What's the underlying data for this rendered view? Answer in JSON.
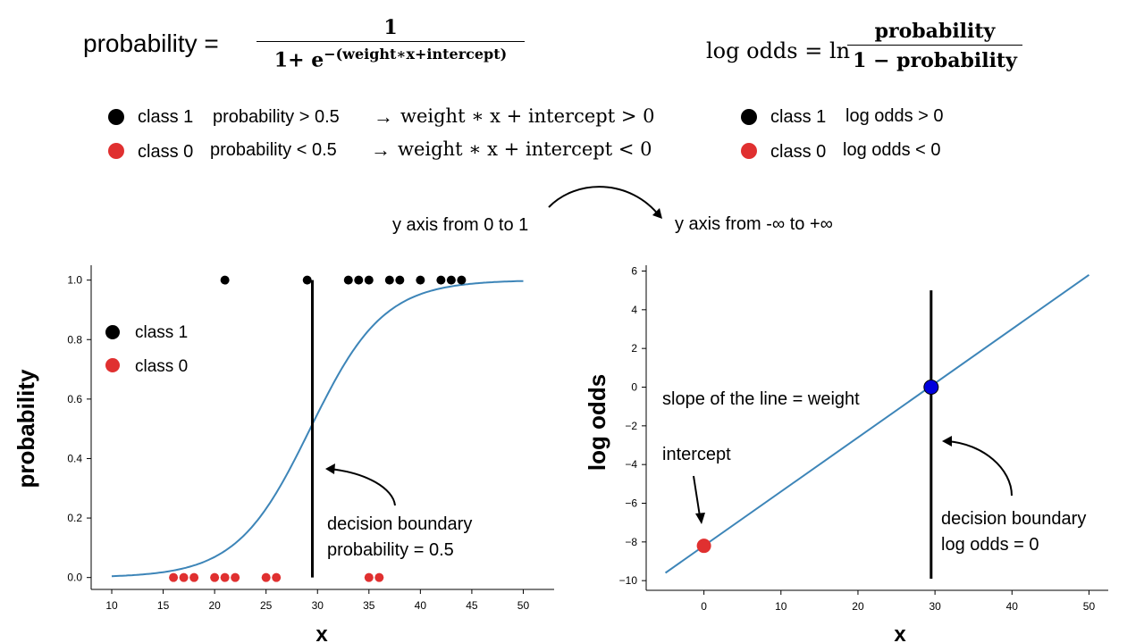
{
  "formula_left": {
    "lhs": "probability =",
    "numerator": "1",
    "den_base": "1+ e",
    "den_exp": "−(weight∗x+intercept)"
  },
  "formula_right": {
    "lhs": "log odds = ln",
    "numerator": "probability",
    "denominator": "1 − probability"
  },
  "rules_left": [
    {
      "class": "class 1",
      "cond": "probability > 0.5",
      "arrow": "→",
      "result": "weight ∗ x + intercept > 0",
      "color": "#000000"
    },
    {
      "class": "class 0",
      "cond": "probability < 0.5",
      "arrow": "→",
      "result": "weight ∗ x + intercept < 0",
      "color": "#e03030"
    }
  ],
  "rules_right": [
    {
      "class": "class 1",
      "cond": "log odds > 0",
      "color": "#000000"
    },
    {
      "class": "class 0",
      "cond": "log odds < 0",
      "color": "#e03030"
    }
  ],
  "transition": {
    "from": "y axis from 0 to 1",
    "to": "y axis from -∞ to +∞"
  },
  "colors": {
    "curve": "#3d85b8",
    "class1": "#000000",
    "class0": "#e03030",
    "boundary": "#000000",
    "intersection": "#0000dd"
  },
  "chart_data": [
    {
      "type": "scatter",
      "title": "",
      "xlabel": "x",
      "ylabel": "probability",
      "xlim": [
        8,
        53
      ],
      "ylim": [
        -0.04,
        1.05
      ],
      "xticks": [
        "10",
        "15",
        "20",
        "25",
        "30",
        "35",
        "40",
        "45",
        "50"
      ],
      "yticks": [
        "0.0",
        "0.2",
        "0.4",
        "0.6",
        "0.8",
        "1.0"
      ],
      "legend": [
        {
          "label": "class 1",
          "color": "#000000"
        },
        {
          "label": "class 0",
          "color": "#e03030"
        }
      ],
      "class1_x": [
        21,
        29,
        33,
        34,
        35,
        37,
        38,
        40,
        42,
        43,
        44
      ],
      "class0_x": [
        16,
        17,
        18,
        20,
        21,
        22,
        25,
        26,
        35,
        36
      ],
      "sigmoid": {
        "weight": 0.28,
        "intercept": -8.2,
        "x_range": [
          10,
          50
        ]
      },
      "decision_boundary_x": 29.5,
      "annotation": [
        "decision boundary",
        "probability = 0.5"
      ]
    },
    {
      "type": "line",
      "title": "",
      "xlabel": "x",
      "ylabel": "log odds",
      "xlim": [
        -7.5,
        52.5
      ],
      "ylim": [
        -10.5,
        6.3
      ],
      "xticks": [
        "0",
        "10",
        "20",
        "30",
        "40",
        "50"
      ],
      "yticks": [
        "6",
        "4",
        "2",
        "0",
        "−2",
        "−4",
        "−6",
        "−8",
        "−10"
      ],
      "line": {
        "weight": 0.28,
        "intercept": -8.2,
        "x_range": [
          -5,
          50
        ]
      },
      "intercept_point": [
        0,
        -8.2
      ],
      "boundary_point": [
        29.5,
        0
      ],
      "decision_boundary_x": 29.5,
      "annotations": {
        "slope": "slope of the line = weight",
        "intercept": "intercept",
        "boundary": [
          "decision boundary",
          "log odds = 0"
        ]
      }
    }
  ]
}
